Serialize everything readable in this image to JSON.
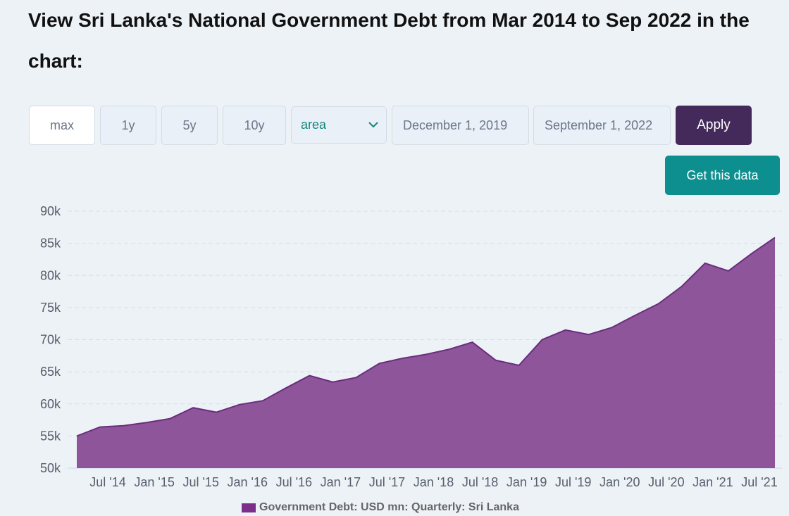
{
  "page": {
    "title": "View Sri Lanka's National Government Debt from Mar 2014 to Sep 2022 in the chart:"
  },
  "controls": {
    "ranges": [
      "max",
      "1y",
      "5y",
      "10y"
    ],
    "chart_type": "area",
    "start_date": "December 1, 2019",
    "end_date": "September 1, 2022",
    "apply_label": "Apply",
    "get_data_label": "Get this data"
  },
  "colors": {
    "area_fill": "#8f559b",
    "area_line": "#6a2d7d",
    "legend_swatch": "#7b2f8a",
    "apply_bg": "#442a5a",
    "get_data_bg": "#0d8f8f"
  },
  "chart_data": {
    "type": "area",
    "title": "",
    "xlabel": "",
    "ylabel": "",
    "ylim": [
      50000,
      90000
    ],
    "y_ticks": [
      50000,
      55000,
      60000,
      65000,
      70000,
      75000,
      80000,
      85000,
      90000
    ],
    "y_tick_labels": [
      "50k",
      "55k",
      "60k",
      "65k",
      "70k",
      "75k",
      "80k",
      "85k",
      "90k"
    ],
    "x_tick_labels": [
      "Jul '14",
      "Jan '15",
      "Jul '15",
      "Jan '16",
      "Jul '16",
      "Jan '17",
      "Jul '17",
      "Jan '18",
      "Jul '18",
      "Jan '19",
      "Jul '19",
      "Jan '20",
      "Jul '20",
      "Jan '21",
      "Jul '21"
    ],
    "grid": true,
    "legend_position": "bottom",
    "x": [
      "2014-03",
      "2014-06",
      "2014-09",
      "2014-12",
      "2015-03",
      "2015-06",
      "2015-09",
      "2015-12",
      "2016-03",
      "2016-06",
      "2016-09",
      "2016-12",
      "2017-03",
      "2017-06",
      "2017-09",
      "2017-12",
      "2018-03",
      "2018-06",
      "2018-09",
      "2018-12",
      "2019-03",
      "2019-06",
      "2019-09",
      "2019-12",
      "2020-03",
      "2020-06",
      "2020-09",
      "2020-12",
      "2021-03",
      "2021-06",
      "2021-09"
    ],
    "series": [
      {
        "name": "Government Debt: USD mn: Quarterly: Sri Lanka",
        "values": [
          55000,
          56400,
          56600,
          57100,
          57700,
          59400,
          58700,
          59900,
          60500,
          62500,
          64400,
          63400,
          64100,
          66300,
          67100,
          67700,
          68500,
          69600,
          66800,
          66000,
          70000,
          71500,
          70800,
          71900,
          73800,
          75600,
          78300,
          81900,
          80700,
          83400,
          85900
        ]
      }
    ]
  }
}
